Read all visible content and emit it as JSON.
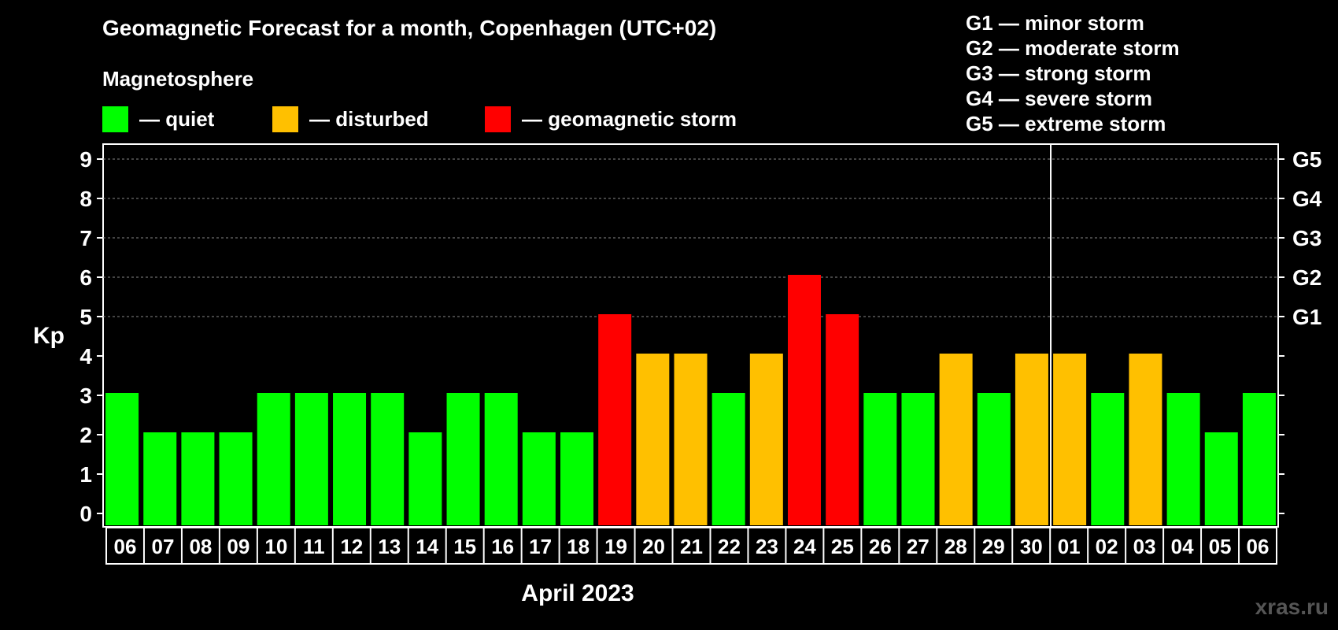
{
  "header": {
    "title": "Geomagnetic Forecast for a month, Copenhagen (UTC+02)",
    "subtitle": "Magnetosphere"
  },
  "legend": [
    {
      "label": "— quiet",
      "color": "#00ff00"
    },
    {
      "label": "— disturbed",
      "color": "#ffc000"
    },
    {
      "label": "— geomagnetic storm",
      "color": "#ff0000"
    }
  ],
  "storm_scale": [
    "G1 — minor storm",
    "G2 — moderate storm",
    "G3 — strong storm",
    "G4 — severe storm",
    "G5 — extreme storm"
  ],
  "watermark": "xras.ru",
  "chart_data": {
    "type": "bar",
    "title": "Geomagnetic Forecast for a month, Copenhagen (UTC+02)",
    "xlabel": "April 2023",
    "ylabel": "Kp",
    "ylim": [
      0,
      9
    ],
    "yticks": [
      "0",
      "1",
      "2",
      "3",
      "4",
      "5",
      "6",
      "7",
      "8",
      "9"
    ],
    "right_axis_labels": [
      {
        "kp": 5,
        "label": "G1"
      },
      {
        "kp": 6,
        "label": "G2"
      },
      {
        "kp": 7,
        "label": "G3"
      },
      {
        "kp": 8,
        "label": "G4"
      },
      {
        "kp": 9,
        "label": "G5"
      }
    ],
    "grid": "horizontal dashed at Kp 5 to 9",
    "month_separator_after": "30",
    "categories": [
      "06",
      "07",
      "08",
      "09",
      "10",
      "11",
      "12",
      "13",
      "14",
      "15",
      "16",
      "17",
      "18",
      "19",
      "20",
      "21",
      "22",
      "23",
      "24",
      "25",
      "26",
      "27",
      "28",
      "29",
      "30",
      "01",
      "02",
      "03",
      "04",
      "05",
      "06"
    ],
    "values": [
      3,
      2,
      2,
      2,
      3,
      3,
      3,
      3,
      2,
      3,
      3,
      2,
      2,
      5,
      4,
      4,
      3,
      4,
      6,
      5,
      3,
      3,
      4,
      3,
      4,
      4,
      3,
      4,
      3,
      2,
      3
    ],
    "color_rule": {
      "quiet_max": 3,
      "disturbed": 4,
      "storm_min": 5
    },
    "colors": {
      "quiet": "#00ff00",
      "disturbed": "#ffc000",
      "storm": "#ff0000"
    }
  }
}
